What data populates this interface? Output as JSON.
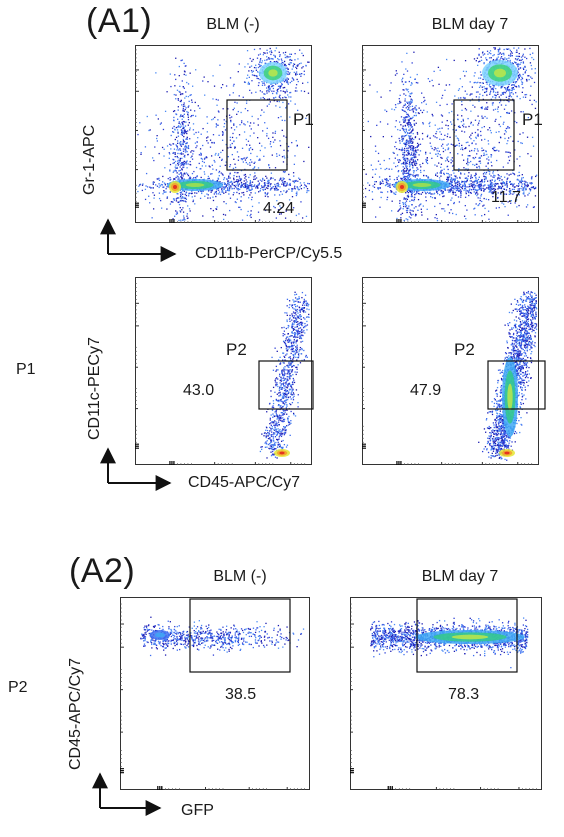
{
  "figure": {
    "a1_label": "(A1)",
    "a2_label": "(A2)",
    "conditions": [
      "BLM (-)",
      "BLM day 7"
    ],
    "row_labels": {
      "p1": "P1",
      "p2": "P2"
    },
    "axes": {
      "r1_x": "CD11b-PerCP/Cy5.5",
      "r1_y": "Gr-1-APC",
      "r2_x": "CD45-APC/Cy7",
      "r2_y": "CD11c-PECy7",
      "r3_x": "GFP",
      "r3_y": "CD45-APC/Cy7"
    },
    "gates": {
      "g1": "P1",
      "g2": "P2"
    }
  },
  "chart_data": [
    {
      "type": "scatter",
      "panel": "A1",
      "condition": "BLM (-)",
      "xlabel": "CD11b-PerCP/Cy5.5",
      "ylabel": "Gr-1-APC",
      "gate": "P1",
      "gate_percent": "4.24"
    },
    {
      "type": "scatter",
      "panel": "A1",
      "condition": "BLM day 7",
      "xlabel": "CD11b-PerCP/Cy5.5",
      "ylabel": "Gr-1-APC",
      "gate": "P1",
      "gate_percent": "11.7"
    },
    {
      "type": "scatter",
      "panel": "A1",
      "condition": "BLM (-)",
      "parent_gate": "P1",
      "xlabel": "CD45-APC/Cy7",
      "ylabel": "CD11c-PECy7",
      "gate": "P2",
      "gate_percent": "43.0"
    },
    {
      "type": "scatter",
      "panel": "A1",
      "condition": "BLM day 7",
      "parent_gate": "P1",
      "xlabel": "CD45-APC/Cy7",
      "ylabel": "CD11c-PECy7",
      "gate": "P2",
      "gate_percent": "47.9"
    },
    {
      "type": "scatter",
      "panel": "A2",
      "condition": "BLM (-)",
      "parent_gate": "P2",
      "xlabel": "GFP",
      "ylabel": "CD45-APC/Cy7",
      "gate_percent": "38.5"
    },
    {
      "type": "scatter",
      "panel": "A2",
      "condition": "BLM day 7",
      "parent_gate": "P2",
      "xlabel": "GFP",
      "ylabel": "CD45-APC/Cy7",
      "gate_percent": "78.3"
    }
  ]
}
